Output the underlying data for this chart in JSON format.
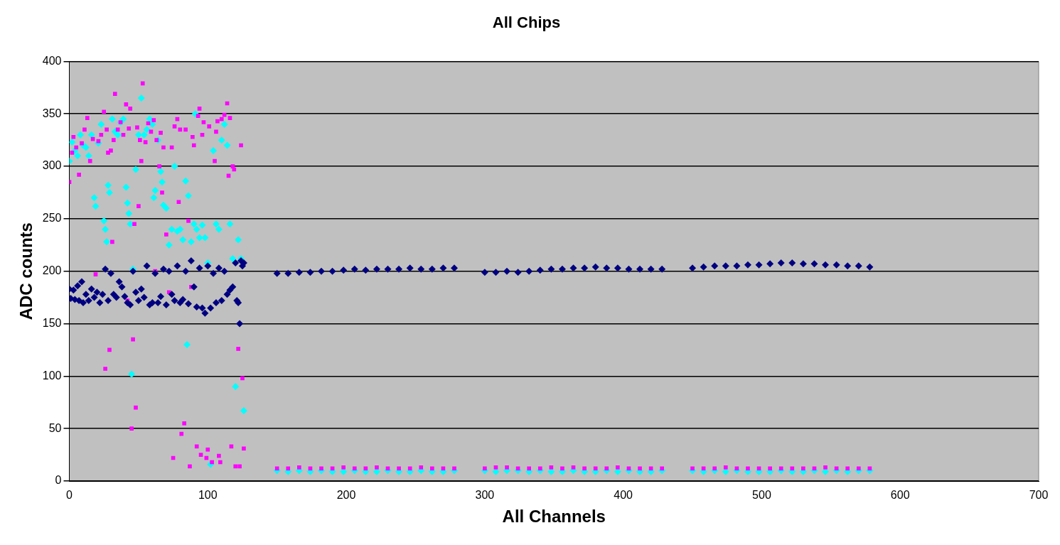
{
  "chart_data": {
    "type": "scatter",
    "title": "All Chips",
    "xlabel": "All Channels",
    "ylabel": "ADC counts",
    "xlim": [
      0,
      700
    ],
    "xticks": [
      0,
      100,
      200,
      300,
      400,
      500,
      600,
      700
    ],
    "ylim": [
      0,
      400
    ],
    "yticks": [
      0,
      50,
      100,
      150,
      200,
      250,
      300,
      350,
      400
    ],
    "grid": "y",
    "legend": false,
    "series": [
      {
        "color": "#000080",
        "marker": "diamond",
        "x": [
          0,
          1,
          3,
          4,
          6,
          7,
          9,
          10,
          12,
          14,
          16,
          18,
          20,
          22,
          24,
          26,
          28,
          30,
          32,
          34,
          36,
          38,
          40,
          42,
          44,
          46,
          48,
          50,
          52,
          54,
          56,
          58,
          60,
          62,
          64,
          66,
          68,
          70,
          72,
          74,
          76,
          78,
          80,
          82,
          84,
          86,
          88,
          90,
          92,
          94,
          96,
          98,
          100,
          102,
          104,
          106,
          108,
          110,
          112,
          114,
          116,
          118,
          120,
          121,
          122,
          123,
          124,
          125,
          126,
          150,
          158,
          166,
          174,
          182,
          190,
          198,
          206,
          214,
          222,
          230,
          238,
          246,
          254,
          262,
          270,
          278,
          300,
          308,
          316,
          324,
          332,
          340,
          348,
          356,
          364,
          372,
          380,
          388,
          396,
          404,
          412,
          420,
          428,
          450,
          458,
          466,
          474,
          482,
          490,
          498,
          506,
          514,
          522,
          530,
          538,
          546,
          554,
          562,
          570,
          578
        ],
        "values": [
          183,
          174,
          182,
          173,
          186,
          172,
          190,
          170,
          178,
          172,
          183,
          175,
          180,
          170,
          178,
          202,
          172,
          198,
          178,
          175,
          190,
          185,
          176,
          170,
          168,
          200,
          180,
          172,
          183,
          175,
          205,
          168,
          170,
          198,
          170,
          176,
          202,
          168,
          200,
          178,
          172,
          205,
          170,
          173,
          200,
          169,
          210,
          185,
          166,
          203,
          165,
          160,
          205,
          165,
          198,
          170,
          203,
          172,
          200,
          178,
          182,
          185,
          208,
          172,
          170,
          150,
          210,
          205,
          208,
          198,
          198,
          199,
          199,
          200,
          200,
          201,
          202,
          201,
          202,
          202,
          202,
          203,
          202,
          202,
          203,
          203,
          199,
          199,
          200,
          199,
          200,
          201,
          202,
          202,
          203,
          203,
          204,
          203,
          203,
          202,
          202,
          202,
          202,
          203,
          204,
          205,
          205,
          205,
          206,
          206,
          207,
          208,
          208,
          207,
          207,
          206,
          206,
          205,
          205,
          204
        ]
      },
      {
        "color": "#ff00ff",
        "marker": "square",
        "x": [
          0,
          2,
          3,
          5,
          7,
          9,
          11,
          13,
          15,
          17,
          19,
          21,
          23,
          25,
          26,
          27,
          28,
          29,
          30,
          31,
          32,
          33,
          35,
          37,
          39,
          41,
          42,
          43,
          44,
          45,
          46,
          47,
          48,
          49,
          50,
          51,
          52,
          53,
          55,
          57,
          59,
          61,
          62,
          63,
          65,
          66,
          67,
          68,
          70,
          72,
          74,
          75,
          76,
          78,
          79,
          80,
          81,
          83,
          84,
          86,
          87,
          88,
          89,
          90,
          92,
          93,
          94,
          95,
          96,
          97,
          99,
          100,
          101,
          103,
          105,
          106,
          107,
          108,
          109,
          110,
          112,
          114,
          115,
          116,
          117,
          118,
          119,
          120,
          122,
          123,
          124,
          125,
          126,
          150,
          158,
          166,
          174,
          182,
          190,
          198,
          206,
          214,
          222,
          230,
          238,
          246,
          254,
          262,
          270,
          278,
          300,
          308,
          316,
          324,
          332,
          340,
          348,
          356,
          364,
          372,
          380,
          388,
          396,
          404,
          412,
          420,
          428,
          450,
          458,
          466,
          474,
          482,
          490,
          498,
          506,
          514,
          522,
          530,
          538,
          546,
          554,
          562,
          570,
          578
        ],
        "values": [
          285,
          313,
          328,
          318,
          292,
          322,
          335,
          346,
          305,
          326,
          197,
          324,
          330,
          352,
          107,
          335,
          313,
          125,
          315,
          228,
          325,
          369,
          335,
          342,
          330,
          359,
          172,
          336,
          355,
          50,
          135,
          245,
          70,
          337,
          262,
          325,
          305,
          379,
          323,
          341,
          333,
          344,
          200,
          325,
          300,
          332,
          275,
          318,
          235,
          180,
          318,
          22,
          338,
          345,
          266,
          335,
          45,
          55,
          335,
          248,
          14,
          185,
          328,
          320,
          33,
          348,
          355,
          25,
          330,
          342,
          22,
          30,
          338,
          18,
          305,
          333,
          343,
          24,
          18,
          345,
          349,
          360,
          291,
          346,
          33,
          300,
          297,
          14,
          126,
          14,
          320,
          98,
          31,
          12,
          12,
          13,
          12,
          12,
          12,
          13,
          12,
          12,
          13,
          12,
          12,
          12,
          13,
          12,
          12,
          12,
          12,
          13,
          13,
          12,
          12,
          12,
          13,
          12,
          13,
          12,
          12,
          12,
          13,
          12,
          12,
          12,
          12,
          12,
          12,
          12,
          13,
          12,
          12,
          12,
          12,
          12,
          12,
          12,
          12,
          13,
          12,
          12,
          12,
          12
        ]
      },
      {
        "color": "#00ffff",
        "marker": "diamond",
        "x": [
          0,
          2,
          4,
          6,
          8,
          10,
          12,
          14,
          16,
          18,
          19,
          21,
          23,
          25,
          26,
          27,
          28,
          29,
          31,
          33,
          35,
          37,
          39,
          41,
          42,
          43,
          44,
          45,
          46,
          48,
          50,
          52,
          54,
          56,
          58,
          60,
          61,
          62,
          64,
          66,
          67,
          68,
          70,
          72,
          74,
          76,
          78,
          80,
          82,
          84,
          85,
          86,
          88,
          90,
          91,
          92,
          94,
          96,
          98,
          100,
          102,
          104,
          106,
          108,
          110,
          112,
          114,
          116,
          118,
          120,
          122,
          124,
          126,
          150,
          158,
          166,
          174,
          182,
          190,
          198,
          206,
          214,
          222,
          230,
          238,
          246,
          254,
          262,
          270,
          278,
          300,
          308,
          316,
          324,
          332,
          340,
          348,
          356,
          364,
          372,
          380,
          388,
          396,
          404,
          412,
          420,
          428,
          450,
          458,
          466,
          474,
          482,
          490,
          498,
          506,
          514,
          522,
          530,
          538,
          546,
          554,
          562,
          570,
          578
        ],
        "values": [
          305,
          323,
          315,
          310,
          330,
          320,
          318,
          310,
          330,
          270,
          262,
          322,
          340,
          248,
          240,
          228,
          282,
          275,
          345,
          333,
          330,
          342,
          345,
          280,
          265,
          255,
          245,
          102,
          202,
          297,
          330,
          365,
          330,
          335,
          345,
          340,
          270,
          277,
          325,
          295,
          285,
          263,
          260,
          225,
          240,
          300,
          238,
          240,
          230,
          286,
          130,
          272,
          228,
          245,
          350,
          240,
          232,
          244,
          232,
          208,
          16,
          315,
          245,
          240,
          325,
          340,
          320,
          245,
          212,
          90,
          230,
          212,
          67,
          10,
          9,
          10,
          9,
          10,
          9,
          9,
          10,
          9,
          9,
          10,
          9,
          9,
          10,
          9,
          9,
          10,
          10,
          9,
          10,
          10,
          9,
          10,
          9,
          9,
          10,
          9,
          9,
          10,
          9,
          10,
          9,
          9,
          10,
          10,
          9,
          10,
          9,
          10,
          9,
          9,
          9,
          10,
          9,
          9,
          10,
          9,
          10,
          9,
          10,
          10
        ]
      }
    ]
  }
}
